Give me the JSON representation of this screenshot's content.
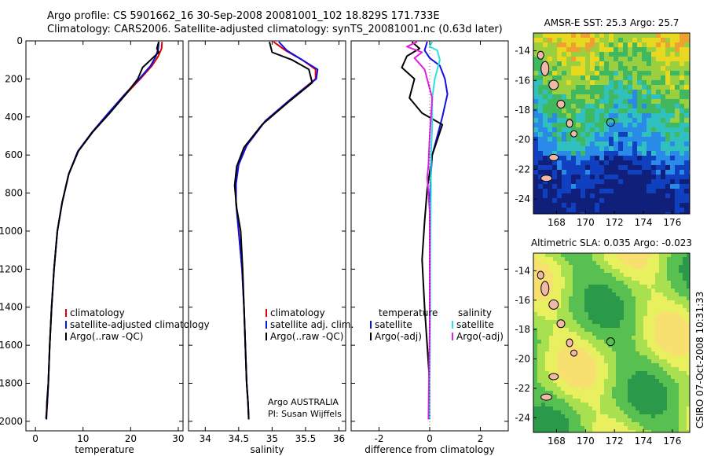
{
  "header": {
    "title_line1": "Argo profile: CS 5901662_16 30-Sep-2008 20081001_102 18.829S 171.733E",
    "title_line2": "Climatology: CARS2006. Satellite-adjusted climatology: synTS_20081001.nc (0.63d later)"
  },
  "footer": {
    "stamp": "CSIRO 07-Oct-2008 10:31:33"
  },
  "colors": {
    "climatology": "#e00000",
    "satellite": "#1010e0",
    "argo": "#000000",
    "sat_salinity": "#30e0e0",
    "argo_salinity": "#e020e0"
  },
  "chart_data": [
    {
      "type": "line",
      "name": "temperature-profile",
      "xlabel": "temperature",
      "ylabel": "",
      "xlim": [
        -2,
        31
      ],
      "ylim": [
        2050,
        0
      ],
      "xticks": [
        0,
        10,
        20,
        30
      ],
      "yticks": [
        0,
        200,
        400,
        600,
        800,
        1000,
        1200,
        1400,
        1600,
        1800,
        2000
      ],
      "legend": [
        "climatology",
        "satellite-adjusted climatology",
        "Argo(..raw -QC)"
      ],
      "series": [
        {
          "name": "climatology",
          "color": "#e00000",
          "x": [
            26.6,
            26.5,
            25.8,
            24.5,
            22.0,
            19.0,
            15.5,
            12.0,
            9.0,
            7.0,
            5.6,
            4.6,
            3.9,
            3.4,
            3.0,
            2.7,
            2.5,
            2.3
          ],
          "y": [
            5,
            40,
            80,
            130,
            200,
            280,
            380,
            480,
            580,
            700,
            850,
            1000,
            1200,
            1400,
            1600,
            1800,
            1900,
            1980
          ]
        },
        {
          "name": "satellite-adjusted climatology",
          "color": "#1010e0",
          "x": [
            25.9,
            25.8,
            25.3,
            24.2,
            21.8,
            18.8,
            15.3,
            11.9,
            8.9,
            7.0,
            5.6,
            4.6,
            3.9,
            3.4,
            3.0,
            2.7,
            2.5,
            2.2
          ],
          "y": [
            5,
            40,
            80,
            130,
            200,
            280,
            380,
            480,
            580,
            700,
            850,
            1000,
            1200,
            1400,
            1600,
            1800,
            1900,
            1985
          ]
        },
        {
          "name": "Argo(..raw -QC)",
          "color": "#000000",
          "x": [
            25.9,
            25.5,
            25.9,
            24.2,
            22.5,
            21.5,
            19.0,
            15.6,
            12.0,
            9.0,
            7.0,
            5.6,
            4.6,
            3.9,
            3.4,
            3.0,
            2.7,
            2.4,
            2.3
          ],
          "y": [
            5,
            40,
            60,
            100,
            140,
            200,
            280,
            380,
            480,
            580,
            700,
            850,
            1000,
            1200,
            1400,
            1600,
            1800,
            1900,
            1990
          ]
        }
      ],
      "legend_placement": "lower-right"
    },
    {
      "type": "line",
      "name": "salinity-profile",
      "xlabel": "salinity",
      "xlim": [
        33.75,
        36.1
      ],
      "ylim": [
        2050,
        0
      ],
      "xticks": [
        34,
        34.5,
        35,
        35.5,
        36
      ],
      "legend": [
        "climatology",
        "satellite adj. clim.",
        "Argo(..raw -QC)"
      ],
      "annotation_line1": "Argo AUSTRALIA",
      "annotation_line2": "PI: Susan Wijffels",
      "series": [
        {
          "name": "climatology",
          "color": "#e00000",
          "x": [
            35.02,
            35.2,
            35.45,
            35.65,
            35.65,
            35.3,
            34.9,
            34.62,
            34.5,
            34.46,
            34.46,
            34.5,
            34.55,
            34.58,
            34.6,
            34.62,
            34.64,
            34.65
          ],
          "y": [
            5,
            50,
            100,
            150,
            200,
            300,
            420,
            550,
            650,
            750,
            850,
            1000,
            1200,
            1400,
            1600,
            1800,
            1900,
            1980
          ]
        },
        {
          "name": "satellite adj. clim.",
          "color": "#1010e0",
          "x": [
            35.1,
            35.22,
            35.45,
            35.68,
            35.66,
            35.3,
            34.9,
            34.62,
            34.5,
            34.46,
            34.46,
            34.5,
            34.55,
            34.58,
            34.6,
            34.62,
            34.64,
            34.65
          ],
          "y": [
            5,
            50,
            100,
            150,
            200,
            300,
            420,
            550,
            650,
            750,
            850,
            1000,
            1200,
            1400,
            1600,
            1800,
            1900,
            1985
          ]
        },
        {
          "name": "Argo(..raw -QC)",
          "color": "#000000",
          "x": [
            34.96,
            35.0,
            35.3,
            35.55,
            35.6,
            35.25,
            34.85,
            34.58,
            34.47,
            34.44,
            34.47,
            34.53,
            34.56,
            34.58,
            34.6,
            34.62,
            34.64,
            34.65
          ],
          "y": [
            5,
            60,
            100,
            150,
            220,
            320,
            440,
            560,
            660,
            760,
            880,
            1000,
            1200,
            1400,
            1600,
            1800,
            1900,
            1990
          ]
        }
      ],
      "legend_placement": "lower-right"
    },
    {
      "type": "line",
      "name": "difference-profile",
      "xlabel": "difference from climatology",
      "xlim": [
        -3.1,
        3.1
      ],
      "ylim": [
        2050,
        0
      ],
      "xticks": [
        -2,
        0,
        2
      ],
      "legend_temperature_header": "temperature",
      "legend_salinity_header": "salinity",
      "legend": [
        "satellite",
        "Argo(-adj)",
        "satellite",
        "Argo(-adj)"
      ],
      "series": [
        {
          "name": "temperature satellite",
          "color": "#1010e0",
          "x": [
            -0.1,
            -0.2,
            0.0,
            0.4,
            0.6,
            0.7,
            0.5,
            0.3,
            0.1,
            0.05,
            0.0,
            0.0,
            0.0,
            0.0,
            0.0,
            0.0,
            0.0
          ],
          "y": [
            5,
            50,
            90,
            130,
            200,
            280,
            400,
            500,
            600,
            700,
            850,
            1000,
            1200,
            1400,
            1600,
            1800,
            1990
          ]
        },
        {
          "name": "temperature Argo(-adj)",
          "color": "#000000",
          "x": [
            -0.7,
            -0.4,
            -0.9,
            -1.1,
            -0.6,
            -0.8,
            -0.3,
            0.5,
            0.3,
            0.1,
            -0.1,
            -0.2,
            -0.3,
            -0.2,
            -0.1,
            0.0,
            0.0
          ],
          "y": [
            5,
            40,
            80,
            140,
            200,
            300,
            380,
            440,
            520,
            600,
            780,
            950,
            1150,
            1400,
            1600,
            1800,
            1990
          ]
        },
        {
          "name": "salinity satellite",
          "color": "#30e0e0",
          "x": [
            0.1,
            0.0,
            0.3,
            0.4,
            0.2,
            0.1,
            0.1,
            0.05,
            0.05,
            0.03,
            0.02,
            0.02,
            0.0,
            0.0
          ],
          "y": [
            5,
            30,
            50,
            100,
            200,
            300,
            450,
            600,
            800,
            1000,
            1200,
            1400,
            1800,
            1990
          ]
        },
        {
          "name": "salinity Argo(-adj)",
          "color": "#e020e0",
          "x": [
            -0.5,
            -0.9,
            -0.3,
            -0.6,
            -0.2,
            0.1,
            0.0,
            -0.05,
            -0.1,
            -0.05,
            0.0,
            0.0,
            -0.05
          ],
          "y": [
            5,
            30,
            60,
            90,
            150,
            300,
            500,
            650,
            720,
            800,
            900,
            1500,
            1990
          ]
        }
      ],
      "legend_placement": "lower-right"
    },
    {
      "type": "heatmap",
      "name": "sst-map",
      "title": "AMSR-E SST: 25.3 Argo: 25.7",
      "xlim": [
        166.4,
        177.2
      ],
      "ylim": [
        -25,
        -12.8
      ],
      "xticks": [
        168,
        170,
        172,
        174,
        176
      ],
      "yticks": [
        -14,
        -16,
        -18,
        -20,
        -22,
        -24
      ],
      "marker": {
        "lon": 171.733,
        "lat": -18.829
      }
    },
    {
      "type": "heatmap",
      "name": "sla-map",
      "title": "Altimetric SLA: 0.035 Argo: -0.023",
      "xlim": [
        166.4,
        177.2
      ],
      "ylim": [
        -25,
        -12.8
      ],
      "xticks": [
        168,
        170,
        172,
        174,
        176
      ],
      "yticks": [
        -14,
        -16,
        -18,
        -20,
        -22,
        -24
      ],
      "marker": {
        "lon": 171.733,
        "lat": -18.829
      }
    }
  ]
}
